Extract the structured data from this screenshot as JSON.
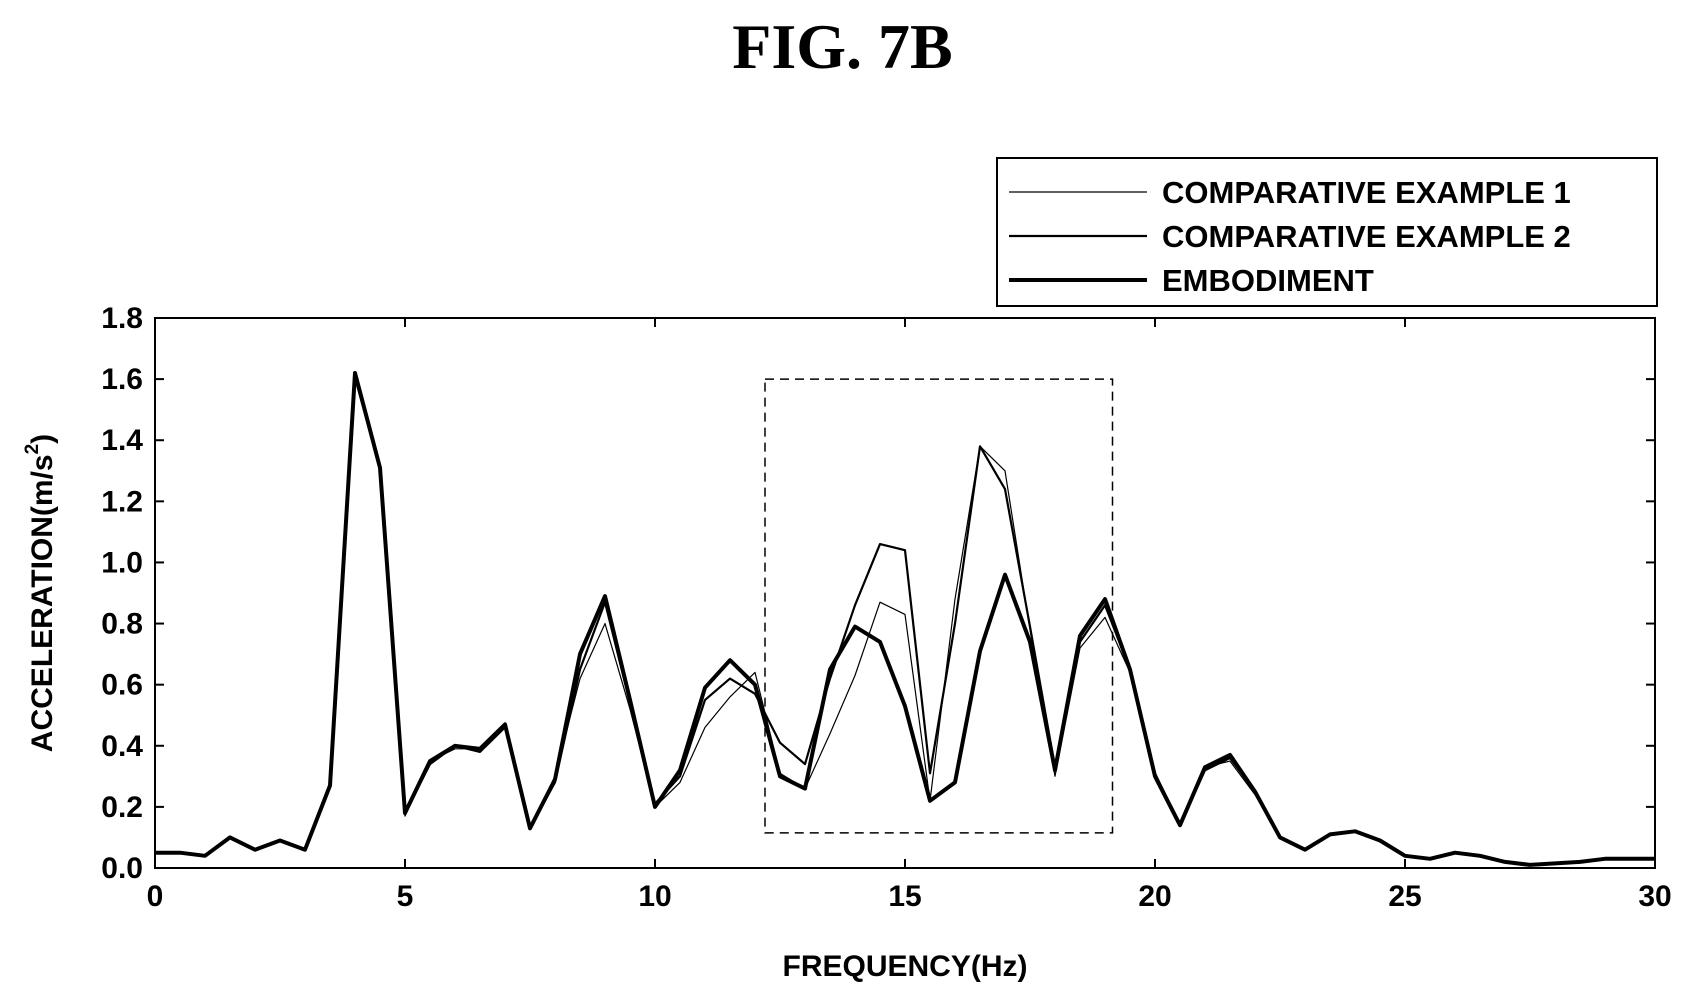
{
  "figure": {
    "title": "FIG. 7B"
  },
  "chart_data": {
    "type": "line",
    "title": "",
    "xlabel": "FREQUENCY(Hz)",
    "ylabel": "ACCELERATION(m/s",
    "ylabel_sup": "2",
    "ylabel_close": ")",
    "xlim": [
      0,
      30
    ],
    "ylim": [
      0,
      1.8
    ],
    "xticks": [
      "0",
      "5",
      "10",
      "15",
      "20",
      "25",
      "30"
    ],
    "yticks": [
      "0.0",
      "0.2",
      "0.4",
      "0.6",
      "0.8",
      "1.0",
      "1.2",
      "1.4",
      "1.6",
      "1.8"
    ],
    "grid": false,
    "legend_position": "top-right",
    "highlight_box": {
      "x": [
        12.2,
        19.15
      ],
      "y": [
        0.115,
        1.6
      ],
      "style": "dashed"
    },
    "x": [
      0,
      0.5,
      1,
      1.5,
      2,
      2.5,
      3,
      3.5,
      4,
      4.5,
      5,
      5.5,
      6,
      6.5,
      7,
      7.5,
      8,
      8.5,
      9,
      9.5,
      10,
      10.5,
      11,
      11.5,
      12,
      12.5,
      13,
      13.5,
      14,
      14.5,
      15,
      15.5,
      16,
      16.5,
      17,
      17.5,
      18,
      18.5,
      19,
      19.5,
      20,
      20.5,
      21,
      21.5,
      22,
      22.5,
      23,
      23.5,
      24,
      24.5,
      25,
      25.5,
      26,
      26.5,
      27,
      27.5,
      28,
      28.5,
      29,
      29.5,
      30
    ],
    "series": [
      {
        "name": "COMPARATIVE EXAMPLE 1",
        "line_weight": "thin",
        "values": [
          0.05,
          0.05,
          0.04,
          0.1,
          0.06,
          0.09,
          0.06,
          0.27,
          1.6,
          1.3,
          0.17,
          0.35,
          0.39,
          0.39,
          0.47,
          0.13,
          0.3,
          0.62,
          0.8,
          0.52,
          0.2,
          0.28,
          0.46,
          0.56,
          0.64,
          0.31,
          0.26,
          0.44,
          0.63,
          0.87,
          0.83,
          0.22,
          0.88,
          1.38,
          1.3,
          0.78,
          0.3,
          0.72,
          0.82,
          0.64,
          0.3,
          0.14,
          0.33,
          0.35,
          0.24,
          0.1,
          0.06,
          0.11,
          0.12,
          0.09,
          0.04,
          0.03,
          0.05,
          0.04,
          0.02,
          0.01,
          0.015,
          0.02,
          0.03,
          0.03,
          0.03
        ]
      },
      {
        "name": "COMPARATIVE EXAMPLE 2",
        "line_weight": "medium",
        "values": [
          0.05,
          0.05,
          0.04,
          0.1,
          0.06,
          0.09,
          0.06,
          0.27,
          1.61,
          1.31,
          0.18,
          0.34,
          0.4,
          0.38,
          0.46,
          0.13,
          0.28,
          0.65,
          0.87,
          0.54,
          0.21,
          0.3,
          0.55,
          0.62,
          0.57,
          0.41,
          0.34,
          0.62,
          0.86,
          1.06,
          1.04,
          0.31,
          0.8,
          1.38,
          1.24,
          0.79,
          0.33,
          0.74,
          0.86,
          0.65,
          0.31,
          0.14,
          0.32,
          0.36,
          0.25,
          0.1,
          0.06,
          0.11,
          0.12,
          0.09,
          0.04,
          0.03,
          0.05,
          0.04,
          0.02,
          0.01,
          0.015,
          0.02,
          0.03,
          0.03,
          0.03
        ]
      },
      {
        "name": "EMBODIMENT",
        "line_weight": "thick",
        "values": [
          0.05,
          0.05,
          0.04,
          0.1,
          0.06,
          0.09,
          0.06,
          0.27,
          1.62,
          1.31,
          0.18,
          0.35,
          0.4,
          0.39,
          0.47,
          0.13,
          0.29,
          0.7,
          0.89,
          0.55,
          0.2,
          0.32,
          0.59,
          0.68,
          0.6,
          0.3,
          0.26,
          0.65,
          0.79,
          0.74,
          0.53,
          0.22,
          0.28,
          0.71,
          0.96,
          0.74,
          0.32,
          0.76,
          0.88,
          0.65,
          0.3,
          0.14,
          0.33,
          0.37,
          0.25,
          0.1,
          0.06,
          0.11,
          0.12,
          0.09,
          0.04,
          0.03,
          0.05,
          0.04,
          0.02,
          0.01,
          0.015,
          0.02,
          0.03,
          0.03,
          0.03
        ]
      }
    ]
  }
}
